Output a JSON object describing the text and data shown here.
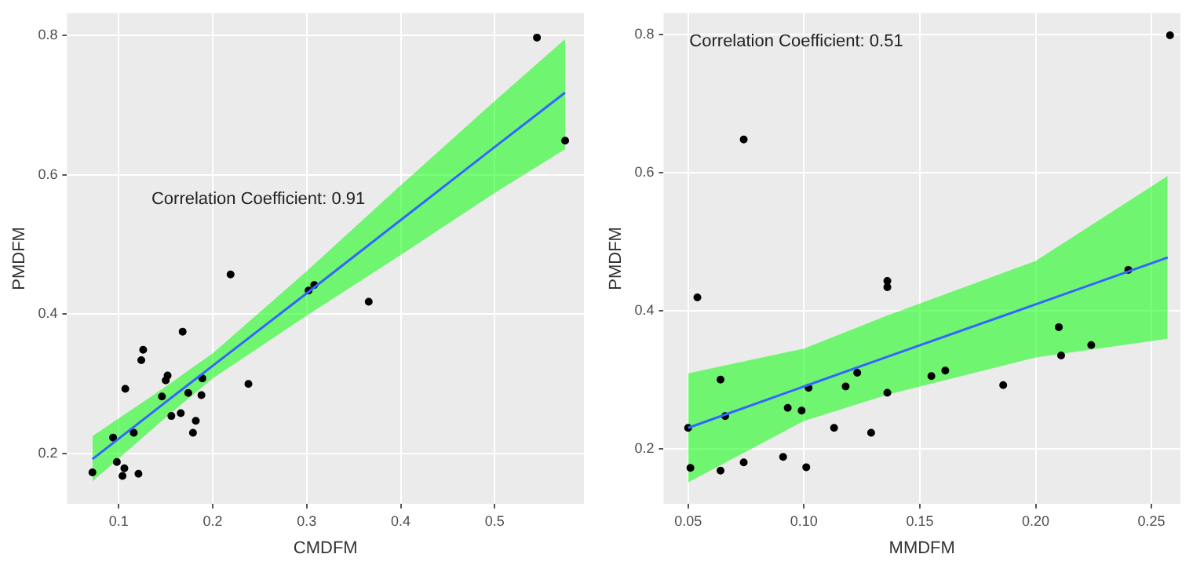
{
  "chart_data": [
    {
      "type": "scatter",
      "xlabel": "CMDFM",
      "ylabel": "PMDFM",
      "annotations": [
        "Correlation Coefficient: 0.91"
      ],
      "grid": true,
      "xlim": [
        0.045,
        0.595
      ],
      "ylim": [
        0.128,
        0.832
      ],
      "xticks": [
        0.1,
        0.2,
        0.3,
        0.4,
        0.5
      ],
      "yticks": [
        0.2,
        0.4,
        0.6,
        0.8
      ],
      "series": [
        {
          "color": "#000000",
          "marker": "circle",
          "x": [
            0.072,
            0.094,
            0.098,
            0.104,
            0.106,
            0.107,
            0.116,
            0.121,
            0.124,
            0.126,
            0.146,
            0.15,
            0.152,
            0.156,
            0.166,
            0.168,
            0.174,
            0.179,
            0.182,
            0.188,
            0.189,
            0.219,
            0.238,
            0.302,
            0.308,
            0.366,
            0.545,
            0.575
          ],
          "values": [
            0.173,
            0.223,
            0.188,
            0.168,
            0.179,
            0.293,
            0.23,
            0.171,
            0.334,
            0.349,
            0.282,
            0.305,
            0.312,
            0.254,
            0.258,
            0.375,
            0.287,
            0.23,
            0.247,
            0.284,
            0.308,
            0.457,
            0.3,
            0.434,
            0.442,
            0.418,
            0.797,
            0.649
          ]
        },
        {
          "type": "line",
          "color": "#3366ff",
          "marker": "none",
          "x": [
            0.072,
            0.15,
            0.2,
            0.3,
            0.4,
            0.5,
            0.575
          ],
          "values": [
            0.192,
            0.274,
            0.326,
            0.43,
            0.535,
            0.64,
            0.718
          ],
          "lower": [
            0.16,
            0.252,
            0.308,
            0.398,
            0.485,
            0.574,
            0.637
          ],
          "upper": [
            0.225,
            0.296,
            0.344,
            0.462,
            0.585,
            0.706,
            0.795
          ]
        }
      ]
    },
    {
      "type": "scatter",
      "xlabel": "MMDFM",
      "ylabel": "PMDFM",
      "annotations": [
        "Correlation Coefficient: 0.51"
      ],
      "grid": true,
      "xlim": [
        0.0394,
        0.2625
      ],
      "ylim": [
        0.12,
        0.831
      ],
      "xticks": [
        {
          "value": 0.05,
          "label": "0.05"
        },
        {
          "value": 0.1,
          "label": "0.10"
        },
        {
          "value": 0.15,
          "label": "0.15"
        },
        {
          "value": 0.2,
          "label": "0.20"
        },
        {
          "value": 0.25,
          "label": "0.25"
        }
      ],
      "yticks": [
        0.2,
        0.4,
        0.6,
        0.8
      ],
      "series": [
        {
          "color": "#000000",
          "marker": "circle",
          "x": [
            0.05,
            0.051,
            0.054,
            0.064,
            0.064,
            0.066,
            0.074,
            0.074,
            0.091,
            0.093,
            0.099,
            0.101,
            0.102,
            0.113,
            0.118,
            0.123,
            0.129,
            0.136,
            0.136,
            0.136,
            0.155,
            0.161,
            0.186,
            0.21,
            0.211,
            0.224,
            0.24,
            0.258
          ],
          "values": [
            0.23,
            0.172,
            0.419,
            0.3,
            0.168,
            0.247,
            0.18,
            0.648,
            0.188,
            0.259,
            0.255,
            0.173,
            0.288,
            0.23,
            0.29,
            0.31,
            0.223,
            0.443,
            0.434,
            0.281,
            0.305,
            0.313,
            0.292,
            0.376,
            0.335,
            0.35,
            0.459,
            0.799
          ]
        },
        {
          "type": "line",
          "color": "#3366ff",
          "marker": "none",
          "x": [
            0.05,
            0.1,
            0.136,
            0.2,
            0.257
          ],
          "values": [
            0.23,
            0.29,
            0.333,
            0.409,
            0.477
          ],
          "lower": [
            0.151,
            0.24,
            0.278,
            0.332,
            0.359
          ],
          "upper": [
            0.309,
            0.345,
            0.393,
            0.472,
            0.595
          ]
        }
      ]
    }
  ]
}
